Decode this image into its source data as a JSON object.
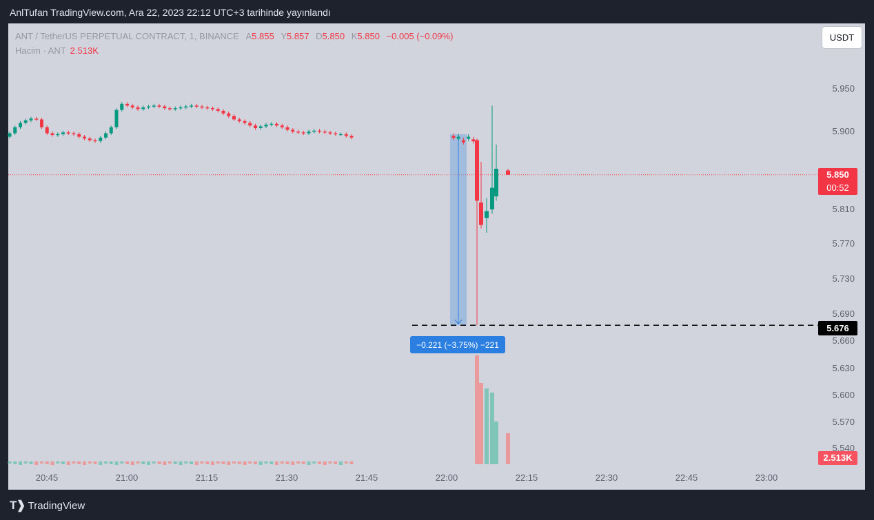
{
  "caption": "AnlTufan TradingView.com, Ara 22, 2023 22:12 UTC+3 tarihinde yayınlandı",
  "legend": {
    "symbol": "ANT / TetherUS PERPETUAL CONTRACT, 1, BINANCE",
    "a_label": "A",
    "a_value": "5.855",
    "y_label": "Y",
    "y_value": "5.857",
    "d_label": "D",
    "d_value": "5.850",
    "k_label": "K",
    "k_value": "5.850",
    "change": "−0.005 (−0.09%)",
    "volume_label": "Hacim · ANT",
    "volume_value": "2.513K"
  },
  "currency_button": "USDT",
  "current_price": "5.850",
  "countdown": "00:52",
  "low_price_label": "5.676",
  "volume_tag": "2.513K",
  "measure_label": "−0.221 (−3.75%) −221",
  "footer_brand": "TradingView",
  "colors": {
    "up": "#089981",
    "down": "#f23645",
    "up_volume": "#7fc6b9",
    "down_volume": "#ea9a9a",
    "background": "#d1d4dc"
  },
  "chart_data": {
    "type": "candlestick",
    "interval": "1",
    "y_ticks": [
      "5.950",
      "5.900",
      "5.810",
      "5.770",
      "5.730",
      "5.690",
      "5.660",
      "5.630",
      "5.600",
      "5.570",
      "5.540"
    ],
    "x_ticks": [
      "20:45",
      "21:00",
      "21:15",
      "21:30",
      "21:45",
      "22:00",
      "22:15",
      "22:30",
      "22:45",
      "23:00"
    ],
    "current_price": 5.85,
    "horizontal_line": 5.676,
    "measure": {
      "from": 5.897,
      "to": 5.676,
      "change": -0.221,
      "percent": -3.75,
      "ticks": -221
    },
    "candles_late": [
      {
        "time": "22:05",
        "open": 5.89,
        "high": 5.892,
        "low": 5.676,
        "close": 5.82
      },
      {
        "time": "22:06",
        "open": 5.818,
        "high": 5.865,
        "low": 5.788,
        "close": 5.792
      },
      {
        "time": "22:07",
        "open": 5.8,
        "high": 5.823,
        "low": 5.783,
        "close": 5.808
      },
      {
        "time": "22:08",
        "open": 5.81,
        "high": 5.93,
        "low": 5.805,
        "close": 5.835
      },
      {
        "time": "22:09",
        "open": 5.825,
        "high": 5.885,
        "low": 5.82,
        "close": 5.857
      },
      {
        "time": "22:10",
        "open": 5.855,
        "high": 5.857,
        "low": 5.85,
        "close": 5.85
      }
    ]
  }
}
